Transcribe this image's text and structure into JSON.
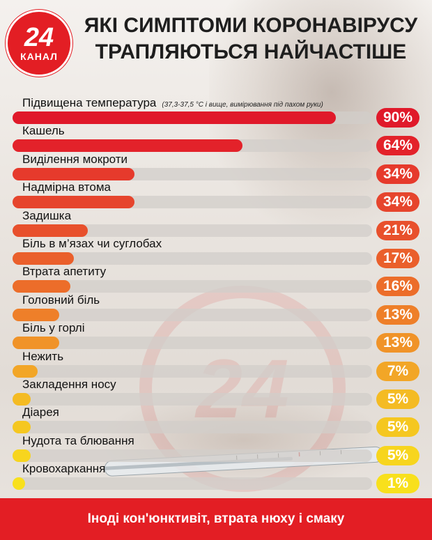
{
  "logo": {
    "number": "24",
    "word": "КАНАЛ"
  },
  "title": {
    "line1": "ЯКІ СИМПТОМИ КОРОНАВІРУСУ",
    "line2": "ТРАПЛЯЮТЬСЯ НАЙЧАСТІШЕ"
  },
  "footer": "Іноді кон'юнктивіт, втрата нюху і смаку",
  "chart_data": {
    "type": "bar",
    "orientation": "horizontal",
    "value_unit": "%",
    "xlim": [
      0,
      100
    ],
    "categories": [
      "Підвищена температура",
      "Кашель",
      "Виділення мокроти",
      "Надмірна втома",
      "Задишка",
      "Біль в м’язах чи суглобах",
      "Втрата апетиту",
      "Головний біль",
      "Біль у горлі",
      "Нежить",
      "Закладення носу",
      "Діарея",
      "Нудота та блювання",
      "Кровохаркання"
    ],
    "values": [
      90,
      64,
      34,
      34,
      21,
      17,
      16,
      13,
      13,
      7,
      5,
      5,
      5,
      1
    ],
    "value_labels": [
      "90%",
      "64%",
      "34%",
      "34%",
      "21%",
      "17%",
      "16%",
      "13%",
      "13%",
      "7%",
      "5%",
      "5%",
      "5%",
      "1%"
    ],
    "notes": [
      "(37,3-37,5 °С і вище, вимірювання під пахом руки)",
      "",
      "",
      "",
      "",
      "",
      "",
      "",
      "",
      "",
      "",
      "",
      "",
      ""
    ],
    "colors": [
      "#e0192a",
      "#e3222a",
      "#e63a2c",
      "#e6452d",
      "#e8502c",
      "#ea5f2b",
      "#ec6d2a",
      "#ee7f29",
      "#f09328",
      "#f2a627",
      "#f4bb23",
      "#f5c720",
      "#f7d51e",
      "#f8e01c"
    ]
  }
}
